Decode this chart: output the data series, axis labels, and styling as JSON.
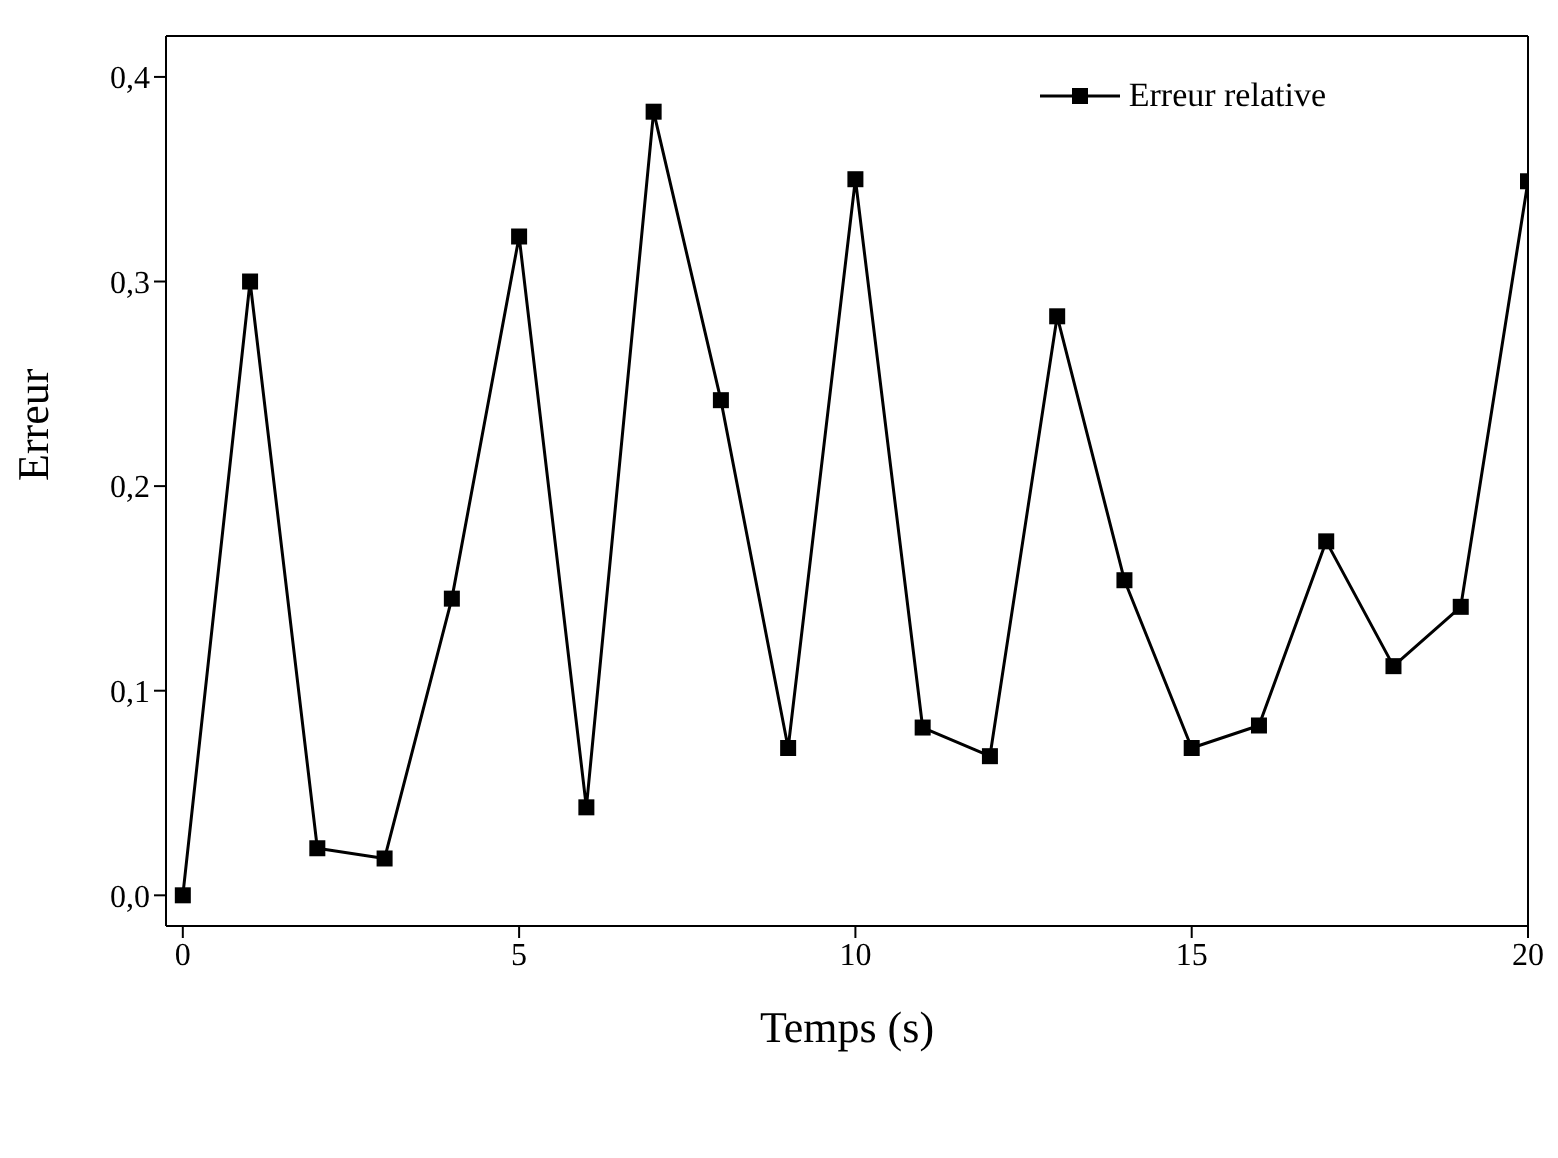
{
  "chart_data": {
    "type": "line",
    "xlabel": "Temps (s)",
    "ylabel": "Erreur",
    "x": [
      0,
      1,
      2,
      3,
      4,
      5,
      6,
      7,
      8,
      9,
      10,
      11,
      12,
      13,
      14,
      15,
      16,
      17,
      18,
      19,
      20
    ],
    "series": [
      {
        "name": "Erreur relative",
        "color": "#000000",
        "values": [
          0,
          0.3,
          0.023,
          0.018,
          0.145,
          0.322,
          0.043,
          0.383,
          0.242,
          0.072,
          0.35,
          0.082,
          0.068,
          0.283,
          0.154,
          0.072,
          0.083,
          0.173,
          0.112,
          0.141,
          0.349
        ]
      }
    ],
    "xlim": [
      -0.25,
      20
    ],
    "xticks": [
      0,
      5,
      10,
      15,
      20
    ],
    "ylim": [
      -0.015,
      0.42
    ],
    "yticks": [
      {
        "value": 0,
        "label": "0,0"
      },
      {
        "value": 0.1,
        "label": "0,1"
      },
      {
        "value": 0.2,
        "label": "0,2"
      },
      {
        "value": 0.3,
        "label": "0,3"
      },
      {
        "value": 0.4,
        "label": "0,4"
      }
    ],
    "legend": "top right",
    "marker": "square",
    "line_style": "solid",
    "grid": false
  }
}
